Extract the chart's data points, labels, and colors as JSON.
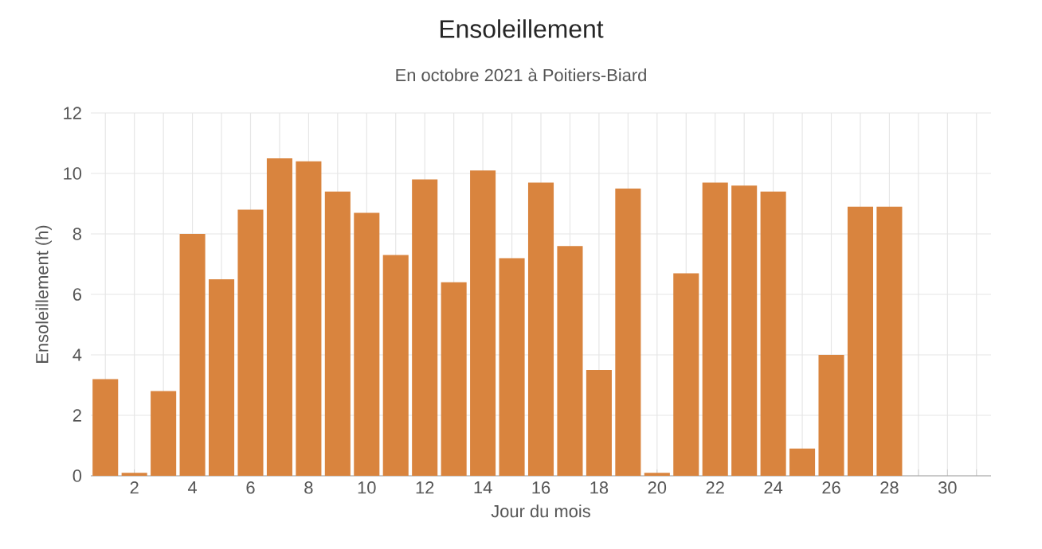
{
  "chart_data": {
    "type": "bar",
    "title": "Ensoleillement",
    "subtitle": "En octobre 2021 à Poitiers-Biard",
    "xlabel": "Jour du mois",
    "ylabel": "Ensoleillement (h)",
    "x": [
      1,
      2,
      3,
      4,
      5,
      6,
      7,
      8,
      9,
      10,
      11,
      12,
      13,
      14,
      15,
      16,
      17,
      18,
      19,
      20,
      21,
      22,
      23,
      24,
      25,
      26,
      27,
      28
    ],
    "values": [
      3.2,
      0.1,
      2.8,
      8.0,
      6.5,
      8.8,
      10.5,
      10.4,
      9.4,
      8.7,
      7.3,
      9.8,
      6.4,
      10.1,
      7.2,
      9.7,
      7.6,
      3.5,
      9.5,
      0.1,
      6.7,
      9.7,
      9.6,
      9.4,
      0.9,
      4.0,
      8.9,
      8.9
    ],
    "color": "#d9843e",
    "xlim": [
      0.5,
      31.5
    ],
    "xticks": [
      {
        "value": 1,
        "label": null
      },
      2,
      {
        "value": 3,
        "label": null
      },
      4,
      {
        "value": 5,
        "label": null
      },
      6,
      {
        "value": 7,
        "label": null
      },
      8,
      {
        "value": 9,
        "label": null
      },
      10,
      {
        "value": 11,
        "label": null
      },
      12,
      {
        "value": 13,
        "label": null
      },
      14,
      {
        "value": 15,
        "label": null
      },
      16,
      {
        "value": 17,
        "label": null
      },
      18,
      {
        "value": 19,
        "label": null
      },
      20,
      {
        "value": 21,
        "label": null
      },
      22,
      {
        "value": 23,
        "label": null
      },
      24,
      {
        "value": 25,
        "label": null
      },
      26,
      {
        "value": 27,
        "label": null
      },
      28,
      {
        "value": 29,
        "label": null
      },
      30,
      {
        "value": 31,
        "label": null
      }
    ],
    "ylim": [
      0,
      12
    ],
    "yticks": [
      0,
      2,
      4,
      6,
      8,
      10,
      12
    ],
    "grid": true
  }
}
